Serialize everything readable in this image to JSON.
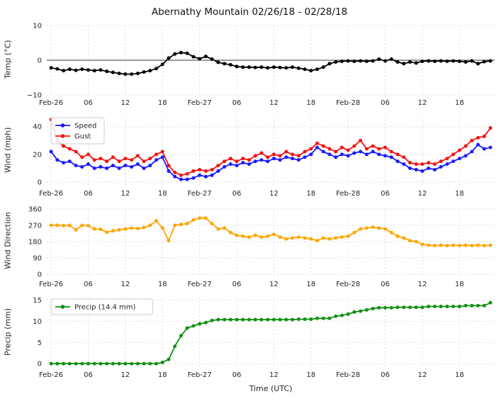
{
  "title": "Abernathy Mountain 02/26/18 - 02/28/18",
  "x_axis": {
    "label": "Time (UTC)",
    "range": [
      -0.7,
      71.7
    ],
    "ticks": [
      {
        "pos": 0,
        "label": "Feb-26"
      },
      {
        "pos": 6,
        "label": "06"
      },
      {
        "pos": 12,
        "label": "12"
      },
      {
        "pos": 18,
        "label": "18"
      },
      {
        "pos": 24,
        "label": "Feb-27"
      },
      {
        "pos": 30,
        "label": "06"
      },
      {
        "pos": 36,
        "label": "12"
      },
      {
        "pos": 42,
        "label": "18"
      },
      {
        "pos": 48,
        "label": "Feb-28"
      },
      {
        "pos": 54,
        "label": "06"
      },
      {
        "pos": 60,
        "label": "12"
      },
      {
        "pos": 66,
        "label": "18"
      }
    ]
  },
  "chart_data": [
    {
      "type": "line",
      "ylabel": "Temp (°C)",
      "ylim": [
        -10,
        10
      ],
      "yticks": [
        10,
        0,
        -10
      ],
      "zero_line": 0,
      "x_start": 0,
      "x_step": 1,
      "show_legend": false,
      "series": [
        {
          "name": "Temp",
          "slug": "temp-series",
          "color": "#000000",
          "values": [
            -2.2,
            -2.5,
            -3,
            -2.6,
            -2.9,
            -2.6,
            -2.8,
            -3,
            -2.8,
            -3.2,
            -3.5,
            -3.8,
            -4,
            -4,
            -3.8,
            -3.4,
            -3,
            -2.4,
            -1.2,
            0.6,
            1.8,
            2.2,
            2,
            1,
            0.4,
            1.1,
            0.3,
            -0.6,
            -1,
            -1.3,
            -1.8,
            -2,
            -2,
            -2.1,
            -2,
            -2.2,
            -2,
            -2.1,
            -2.2,
            -2,
            -2.3,
            -2.6,
            -3,
            -2.6,
            -2,
            -1,
            -0.5,
            -0.3,
            -0.2,
            -0.3,
            -0.2,
            -0.3,
            -0.2,
            0.3,
            -0.2,
            0.3,
            -0.5,
            -1,
            -0.5,
            -0.8,
            -0.3,
            -0.2,
            -0.3,
            -0.2,
            -0.3,
            -0.2,
            -0.3,
            -0.5,
            -0.2,
            -1,
            -0.4,
            -0.2
          ]
        }
      ]
    },
    {
      "type": "line",
      "ylabel": "Wind (mph)",
      "ylim": [
        -2.5,
        47.5
      ],
      "yticks": [
        0,
        20,
        40
      ],
      "zero_line": null,
      "x_start": 0,
      "x_step": 1,
      "show_legend": true,
      "series": [
        {
          "name": "Speed",
          "slug": "speed-series",
          "color": "#1a1aff",
          "values": [
            22,
            16,
            14,
            15,
            12,
            11,
            13,
            10,
            11,
            10,
            12,
            10,
            12,
            11,
            13,
            10,
            12,
            16,
            18,
            8,
            4,
            2,
            2,
            3,
            5,
            4,
            5,
            8,
            11,
            13,
            12,
            14,
            13,
            15,
            16,
            15,
            17,
            16,
            18,
            17,
            16,
            18,
            20,
            25,
            22,
            20,
            18,
            20,
            19,
            21,
            22,
            20,
            22,
            20,
            19,
            18,
            15,
            13,
            10,
            9,
            8,
            10,
            9,
            11,
            13,
            15,
            17,
            19,
            22,
            27,
            24,
            25
          ]
        },
        {
          "name": "Gust",
          "slug": "gust-series",
          "color": "#f01414",
          "values": [
            45,
            30,
            26,
            24,
            22,
            18,
            20,
            16,
            17,
            15,
            18,
            15,
            17,
            16,
            19,
            15,
            17,
            20,
            22,
            12,
            7,
            5,
            6,
            8,
            9,
            8,
            9,
            12,
            15,
            17,
            15,
            17,
            16,
            19,
            21,
            18,
            20,
            19,
            22,
            20,
            19,
            22,
            24,
            28,
            26,
            24,
            22,
            25,
            23,
            26,
            30,
            24,
            26,
            24,
            25,
            22,
            20,
            18,
            14,
            13,
            13,
            14,
            13,
            15,
            17,
            20,
            23,
            26,
            30,
            32,
            33,
            39
          ]
        }
      ]
    },
    {
      "type": "line",
      "ylabel": "Wind Direction",
      "ylim": [
        -12,
        372
      ],
      "yticks": [
        0,
        90,
        180,
        270,
        360
      ],
      "zero_line": null,
      "x_start": 0,
      "x_step": 1,
      "show_legend": false,
      "series": [
        {
          "name": "Wind Direction",
          "slug": "direction-series",
          "color": "#ffa500",
          "values": [
            270,
            270,
            268,
            270,
            245,
            270,
            268,
            250,
            248,
            232,
            240,
            245,
            250,
            255,
            252,
            258,
            270,
            295,
            255,
            185,
            270,
            275,
            280,
            300,
            310,
            310,
            280,
            250,
            255,
            230,
            215,
            210,
            205,
            215,
            205,
            210,
            220,
            205,
            195,
            200,
            205,
            200,
            195,
            185,
            200,
            195,
            200,
            205,
            210,
            230,
            250,
            255,
            260,
            255,
            250,
            230,
            210,
            200,
            185,
            180,
            165,
            160,
            158,
            160,
            158,
            160,
            158,
            160,
            158,
            160,
            158,
            160
          ]
        }
      ]
    },
    {
      "type": "line",
      "ylabel": "Precip (mm)",
      "ylim": [
        -0.8,
        15.6
      ],
      "yticks": [
        0,
        5,
        10,
        15
      ],
      "zero_line": null,
      "x_start": 0,
      "x_step": 1,
      "show_legend": true,
      "series": [
        {
          "name": "Precip (14.4 mm)",
          "slug": "precip-series",
          "color": "#129012",
          "values": [
            0,
            0,
            0,
            0,
            0,
            0,
            0,
            0,
            0,
            0,
            0,
            0,
            0,
            0,
            0,
            0,
            0,
            0,
            0.3,
            1.0,
            4.1,
            6.6,
            8.4,
            8.9,
            9.4,
            9.7,
            10.2,
            10.4,
            10.4,
            10.4,
            10.4,
            10.4,
            10.4,
            10.4,
            10.4,
            10.4,
            10.4,
            10.4,
            10.4,
            10.4,
            10.5,
            10.5,
            10.5,
            10.7,
            10.7,
            10.7,
            11.2,
            11.4,
            11.7,
            12.2,
            12.4,
            12.7,
            13.0,
            13.2,
            13.2,
            13.2,
            13.3,
            13.3,
            13.3,
            13.3,
            13.3,
            13.5,
            13.5,
            13.5,
            13.5,
            13.5,
            13.5,
            13.7,
            13.7,
            13.7,
            13.7,
            14.4
          ]
        }
      ]
    }
  ]
}
